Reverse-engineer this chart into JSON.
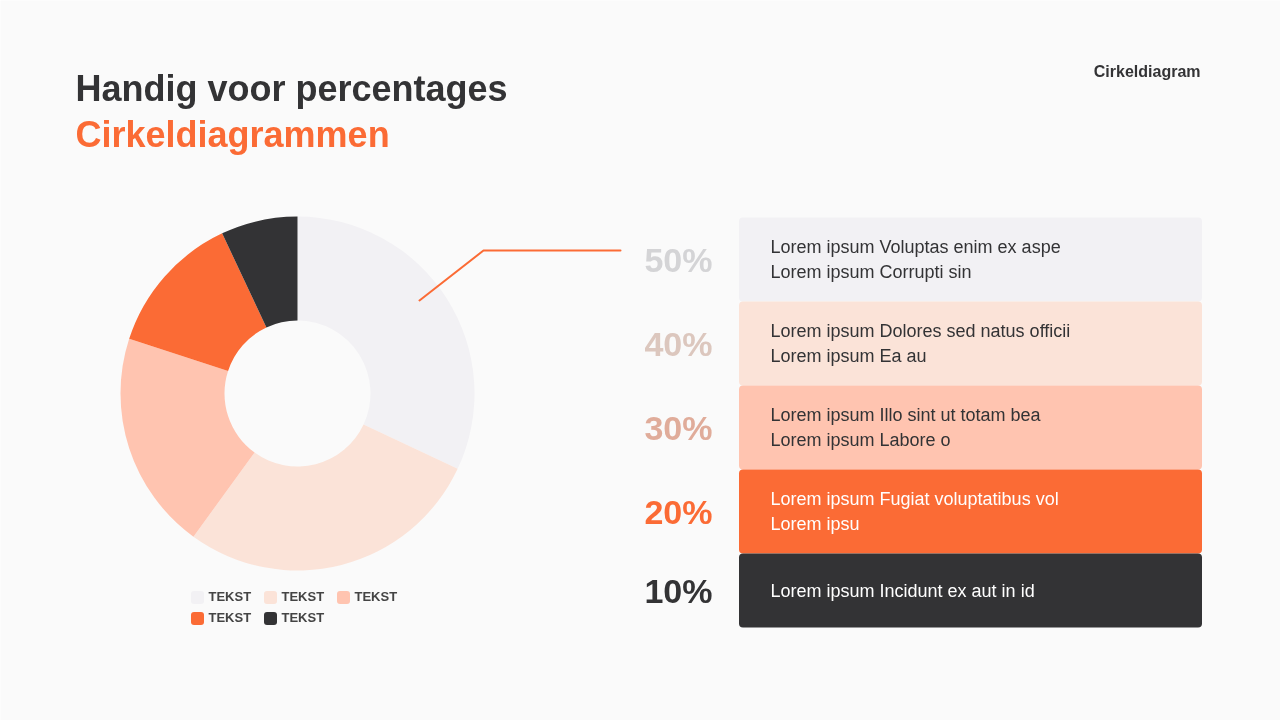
{
  "chart_data": {
    "type": "donut",
    "title": "Handig voor percentages",
    "subtitle": "Cirkeldiagrammen",
    "categories": [
      "TEKST",
      "TEKST",
      "TEKST",
      "TEKST",
      "TEKST"
    ],
    "values": [
      32,
      28,
      20,
      13,
      7
    ],
    "colors": [
      "#f2f1f4",
      "#fbe3d8",
      "#ffc4b0",
      "#fb6b35",
      "#333335"
    ],
    "legend": "bottom",
    "annotations": [
      "Cirkeldiagram",
      "50%",
      "Lorem ipsum Voluptas enim ex aspe\nLorem ipsum Corrupti sin",
      "40%",
      "Lorem ipsum Dolores sed natus officii\nLorem ipsum Ea au",
      "30%",
      "Lorem ipsum Illo sint ut totam bea\nLorem ipsum Labore o",
      "20%",
      "Lorem ipsum Fugiat voluptatibus vol\nLorem ipsu",
      "10%",
      "Lorem ipsum Incidunt ex aut in id"
    ]
  }
}
